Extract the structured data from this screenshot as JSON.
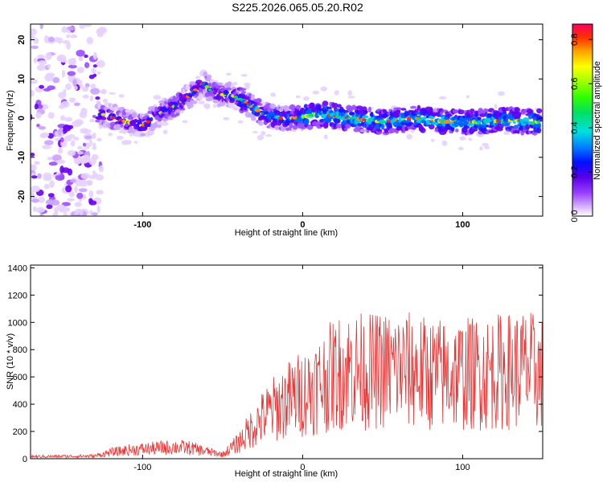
{
  "title": "S225.2026.065.05.20.R02",
  "chart_data": [
    {
      "type": "heatmap",
      "xlabel": "Height of straight line (km)",
      "ylabel": "Frequency (Hz)",
      "xlim": [
        -170,
        150
      ],
      "ylim": [
        -25,
        24
      ],
      "xticks": [
        -100,
        0,
        100
      ],
      "yticks": [
        -20,
        -10,
        0,
        10,
        20
      ],
      "colorbar": {
        "label": "Normalized spectral amplitude",
        "range": [
          0,
          0.87
        ],
        "ticks": [
          0.0,
          0.2,
          0.4,
          0.6,
          0.8
        ]
      },
      "ridge": {
        "x": [
          -125,
          -110,
          -100,
          -90,
          -80,
          -70,
          -62,
          -55,
          -45,
          -35,
          -25,
          -15,
          -5,
          10,
          30,
          50,
          70,
          90,
          110,
          130,
          145
        ],
        "y": [
          1,
          -1,
          -2,
          1,
          3,
          6,
          9,
          6,
          6,
          4,
          1,
          0,
          0,
          1,
          0,
          -1,
          0,
          -1,
          -1,
          -0.5,
          -1
        ]
      }
    },
    {
      "type": "line",
      "xlabel": "Height of straight line (km)",
      "ylabel": "SNR (10 * v/v)",
      "xlim": [
        -170,
        150
      ],
      "ylim": [
        0,
        1420
      ],
      "xticks": [
        -100,
        0,
        100
      ],
      "yticks": [
        0,
        200,
        400,
        600,
        800,
        1000,
        1200,
        1400
      ],
      "series": [
        {
          "name": "SNR",
          "color": "#ee3333",
          "envelope": {
            "x": [
              -170,
              -130,
              -120,
              -110,
              -100,
              -90,
              -80,
              -70,
              -60,
              -50,
              -40,
              -30,
              -20,
              -10,
              0,
              10,
              20,
              30,
              40,
              60,
              80,
              100,
              120,
              140,
              150
            ],
            "y": [
              20,
              25,
              60,
              80,
              90,
              100,
              110,
              100,
              70,
              40,
              150,
              320,
              450,
              550,
              620,
              700,
              800,
              850,
              820,
              850,
              800,
              800,
              820,
              850,
              800
            ]
          }
        }
      ]
    }
  ]
}
